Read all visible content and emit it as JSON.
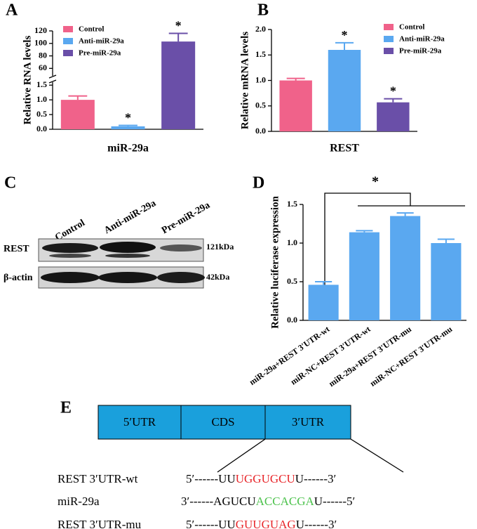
{
  "chart_data": [
    {
      "type": "bar",
      "y_label": "Relative RNA levels",
      "x_label": "miR-29a",
      "ylim": [
        0,
        120
      ],
      "ybreak": [
        1.6,
        48
      ],
      "yticks": [
        {
          "value": 0,
          "label": "0.0"
        },
        {
          "value": 0.5,
          "label": "0.5"
        },
        {
          "value": 1,
          "label": "1.0"
        },
        {
          "value": 1.5,
          "label": "1.5"
        },
        60,
        80,
        100,
        120
      ],
      "series": [
        {
          "name": "Control",
          "color": "#f0628a",
          "values": [
            1.0
          ],
          "errors": [
            0.13
          ]
        },
        {
          "name": "Anti-miR-29a",
          "color": "#5aa8f0",
          "values": [
            0.1
          ],
          "errors": [
            0.03
          ],
          "annotation": "*"
        },
        {
          "name": "Pre-miR-29a",
          "color": "#6a4fa8",
          "values": [
            103
          ],
          "errors": [
            13
          ],
          "annotation": "*"
        }
      ]
    },
    {
      "type": "bar",
      "y_label": "Relative  mRNA levels",
      "x_label": "REST",
      "ylim": [
        0,
        2
      ],
      "yticks": [
        {
          "value": 0,
          "label": "0.0"
        },
        0.5,
        {
          "value": 1,
          "label": "1.0"
        },
        1.5,
        {
          "value": 2,
          "label": "2.0"
        }
      ],
      "series": [
        {
          "name": "Control",
          "color": "#f0628a",
          "values": [
            1.0
          ],
          "errors": [
            0.04
          ]
        },
        {
          "name": "Anti-miR-29a",
          "color": "#5aa8f0",
          "values": [
            1.6
          ],
          "errors": [
            0.14
          ],
          "annotation": "*"
        },
        {
          "name": "Pre-miR-29a",
          "color": "#6a4fa8",
          "values": [
            0.57
          ],
          "errors": [
            0.07
          ],
          "annotation": "*"
        }
      ]
    },
    {
      "type": "bar",
      "y_label": "Relative luciferase expression",
      "color": "#5aa8f0",
      "ylim": [
        0,
        1.5
      ],
      "yticks": [
        {
          "value": 0,
          "label": "0.0"
        },
        0.5,
        {
          "value": 1,
          "label": "1.0"
        },
        1.5
      ],
      "categories": [
        "miR-29a+REST 3′UTR-wt",
        "miR-NC+REST 3′UTR-wt",
        "miR-29a+REST 3′UTR-mu",
        "miR-NC+REST 3′UTR-mu"
      ],
      "values": [
        0.46,
        1.14,
        1.35,
        1.0
      ],
      "errors": [
        0.04,
        0.02,
        0.04,
        0.05
      ],
      "significance": "*"
    }
  ],
  "panel_labels": [
    "A",
    "B",
    "C",
    "D",
    "E"
  ],
  "blot": {
    "lanes": [
      "Control",
      "Anti-miR-29a",
      "Pre-miR-29a"
    ],
    "rows": [
      {
        "name": "REST",
        "size": "121kDa"
      },
      {
        "name": "β-actin",
        "size": "42kDa"
      }
    ]
  },
  "diagram": {
    "regions": [
      "5′UTR",
      "CDS",
      "3′UTR"
    ],
    "sequences": [
      {
        "label": "REST 3′UTR-wt",
        "parts": [
          {
            "text": "5′------UU",
            "color": "#000000"
          },
          {
            "text": "UGGUGCU",
            "color": "#e8262a"
          },
          {
            "text": "U------3′",
            "color": "#000000"
          }
        ]
      },
      {
        "label": "miR-29a",
        "parts": [
          {
            "text": "3′------AGUCU",
            "color": "#000000"
          },
          {
            "text": "ACCACGA",
            "color": "#4cc24c"
          },
          {
            "text": "U------5′",
            "color": "#000000"
          }
        ]
      },
      {
        "label": "REST 3′UTR-mu",
        "parts": [
          {
            "text": "5′------UU",
            "color": "#000000"
          },
          {
            "text": "GUUGUAG",
            "color": "#e8262a"
          },
          {
            "text": "U------3′",
            "color": "#000000"
          }
        ]
      }
    ]
  }
}
